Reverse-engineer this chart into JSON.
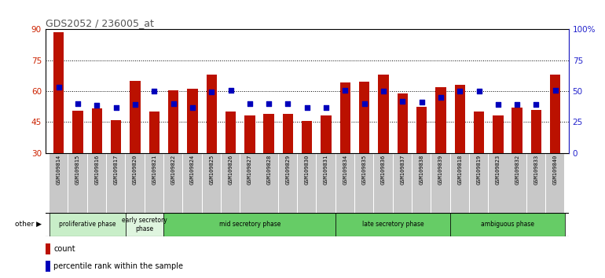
{
  "title": "GDS2052 / 236005_at",
  "samples": [
    "GSM109814",
    "GSM109815",
    "GSM109816",
    "GSM109817",
    "GSM109820",
    "GSM109821",
    "GSM109822",
    "GSM109824",
    "GSM109825",
    "GSM109826",
    "GSM109827",
    "GSM109828",
    "GSM109829",
    "GSM109830",
    "GSM109831",
    "GSM109834",
    "GSM109835",
    "GSM109836",
    "GSM109837",
    "GSM109838",
    "GSM109839",
    "GSM109818",
    "GSM109819",
    "GSM109823",
    "GSM109832",
    "GSM109833",
    "GSM109840"
  ],
  "red_values": [
    88.5,
    50.5,
    51.5,
    46.0,
    65.0,
    50.0,
    60.5,
    61.0,
    68.0,
    50.0,
    48.0,
    49.0,
    49.0,
    45.5,
    48.0,
    64.0,
    64.5,
    68.0,
    59.0,
    52.5,
    62.0,
    63.0,
    50.0,
    48.0,
    52.0,
    51.0,
    68.0
  ],
  "blue_values": [
    62.0,
    54.0,
    53.0,
    52.0,
    53.5,
    60.0,
    54.0,
    52.0,
    59.5,
    60.5,
    54.0,
    54.0,
    54.0,
    52.0,
    52.0,
    60.5,
    54.0,
    60.0,
    55.0,
    54.5,
    57.0,
    60.0,
    60.0,
    53.5,
    53.5,
    53.5,
    60.5
  ],
  "phase_bounds": [
    {
      "start": 0,
      "end": 4,
      "label": "proliferative phase",
      "color": "#c8eec8"
    },
    {
      "start": 4,
      "end": 6,
      "label": "early secretory\nphase",
      "color": "#dff5df"
    },
    {
      "start": 6,
      "end": 15,
      "label": "mid secretory phase",
      "color": "#66cc66"
    },
    {
      "start": 15,
      "end": 21,
      "label": "late secretory phase",
      "color": "#66cc66"
    },
    {
      "start": 21,
      "end": 27,
      "label": "ambiguous phase",
      "color": "#66cc66"
    }
  ],
  "ylim_left": [
    30,
    90
  ],
  "ylim_right": [
    0,
    100
  ],
  "yticks_left": [
    30,
    45,
    60,
    75,
    90
  ],
  "yticks_right": [
    0,
    25,
    50,
    75,
    100
  ],
  "bar_color": "#bb1100",
  "dot_color": "#0000bb",
  "tick_bg_color": "#c8c8c8",
  "title_color": "#555555",
  "left_axis_color": "#cc2200",
  "right_axis_color": "#2222cc",
  "grid_color": "#000000",
  "bar_width": 0.55
}
